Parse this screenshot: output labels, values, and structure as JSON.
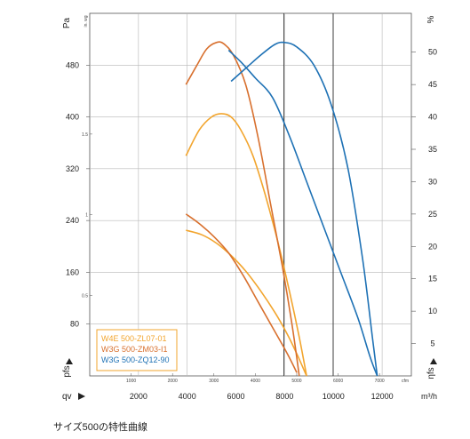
{
  "chart_data": {
    "type": "line",
    "caption": "サイズ500の特性曲線",
    "x_axis": {
      "label": "qv",
      "unit": "m³/h",
      "range": [
        0,
        13200
      ],
      "ticks": [
        {
          "value": 2000,
          "label": "2000"
        },
        {
          "value": 4000,
          "label": "4000"
        },
        {
          "value": 6000,
          "label": "6000"
        },
        {
          "value": 8000,
          "label": "8000"
        },
        {
          "value": 10000,
          "label": "10000"
        },
        {
          "value": 12000,
          "label": "12000"
        }
      ]
    },
    "x_axis_cfm": {
      "unit": "cfm",
      "ticks": [
        {
          "value": 1699,
          "label": "1000"
        },
        {
          "value": 3398,
          "label": "2000"
        },
        {
          "value": 5097,
          "label": "3000"
        },
        {
          "value": 6796,
          "label": "4000"
        },
        {
          "value": 8495,
          "label": "5000"
        },
        {
          "value": 10194,
          "label": "6000"
        },
        {
          "value": 11893,
          "label": "7000"
        }
      ]
    },
    "y_axis_left": {
      "label": "pfs",
      "unit": "Pa",
      "range": [
        0,
        560
      ],
      "ticks": [
        {
          "value": 80,
          "label": "80"
        },
        {
          "value": 160,
          "label": "160"
        },
        {
          "value": 240,
          "label": "240"
        },
        {
          "value": 320,
          "label": "320"
        },
        {
          "value": 400,
          "label": "400"
        },
        {
          "value": 480,
          "label": "480"
        }
      ]
    },
    "y_axis_inh2o": {
      "unit": "in. wg",
      "ticks": [
        {
          "value": 124.5,
          "label": "0.5"
        },
        {
          "value": 249,
          "label": "1"
        },
        {
          "value": 373.5,
          "label": "1.5"
        }
      ]
    },
    "y_axis_right": {
      "label": "ηfs",
      "unit": "%",
      "range": [
        0,
        56
      ],
      "ticks": [
        {
          "value": 5,
          "label": "5"
        },
        {
          "value": 10,
          "label": "10"
        },
        {
          "value": 15,
          "label": "15"
        },
        {
          "value": 20,
          "label": "20"
        },
        {
          "value": 25,
          "label": "25"
        },
        {
          "value": 30,
          "label": "30"
        },
        {
          "value": 35,
          "label": "35"
        },
        {
          "value": 40,
          "label": "40"
        },
        {
          "value": 45,
          "label": "45"
        },
        {
          "value": 50,
          "label": "50"
        }
      ]
    },
    "limit_lines_x": [
      7970,
      9990
    ],
    "series": [
      {
        "name": "W4E 500-ZL07-01",
        "color": "#f2a52e",
        "pressure": [
          [
            3950,
            340
          ],
          [
            4500,
            380
          ],
          [
            5000,
            400
          ],
          [
            5400,
            405
          ],
          [
            5800,
            400
          ],
          [
            6200,
            380
          ],
          [
            6700,
            340
          ],
          [
            7200,
            280
          ],
          [
            7700,
            210
          ],
          [
            8200,
            130
          ],
          [
            8600,
            60
          ],
          [
            8900,
            0
          ]
        ],
        "efficiency": [
          [
            3950,
            22.5
          ],
          [
            4600,
            21.8
          ],
          [
            5200,
            20.5
          ],
          [
            5800,
            18.6
          ],
          [
            6400,
            16.2
          ],
          [
            7000,
            13.2
          ],
          [
            7600,
            9.8
          ],
          [
            8100,
            6.5
          ],
          [
            8500,
            3.4
          ],
          [
            8900,
            0
          ]
        ]
      },
      {
        "name": "W3G 500-ZM03-I1",
        "color": "#d8702e",
        "pressure": [
          [
            3950,
            450
          ],
          [
            4400,
            480
          ],
          [
            4800,
            505
          ],
          [
            5200,
            515
          ],
          [
            5500,
            513
          ],
          [
            5900,
            495
          ],
          [
            6400,
            450
          ],
          [
            6900,
            370
          ],
          [
            7400,
            270
          ],
          [
            7900,
            170
          ],
          [
            8300,
            80
          ],
          [
            8600,
            0
          ]
        ],
        "efficiency": [
          [
            3950,
            25
          ],
          [
            4500,
            23.5
          ],
          [
            5100,
            21.5
          ],
          [
            5700,
            19
          ],
          [
            6300,
            15.5
          ],
          [
            6900,
            11.5
          ],
          [
            7500,
            7.5
          ],
          [
            8100,
            3.5
          ],
          [
            8500,
            0.5
          ]
        ]
      },
      {
        "name": "W3G 500-ZQ12-90",
        "color": "#1f72b5",
        "pressure": [
          [
            5700,
            503
          ],
          [
            6200,
            485
          ],
          [
            6800,
            460
          ],
          [
            7500,
            430
          ],
          [
            8200,
            370
          ],
          [
            8900,
            300
          ],
          [
            9600,
            230
          ],
          [
            10300,
            160
          ],
          [
            11000,
            90
          ],
          [
            11500,
            30
          ],
          [
            11800,
            0
          ]
        ],
        "efficiency": [
          [
            5800,
            45.5
          ],
          [
            6400,
            47.5
          ],
          [
            7000,
            49.5
          ],
          [
            7600,
            51.2
          ],
          [
            8000,
            51.5
          ],
          [
            8500,
            50.8
          ],
          [
            9200,
            48
          ],
          [
            9900,
            42
          ],
          [
            10600,
            32
          ],
          [
            11200,
            18
          ],
          [
            11600,
            6
          ],
          [
            11800,
            0
          ]
        ]
      }
    ],
    "legend_position": "bottom-left"
  }
}
